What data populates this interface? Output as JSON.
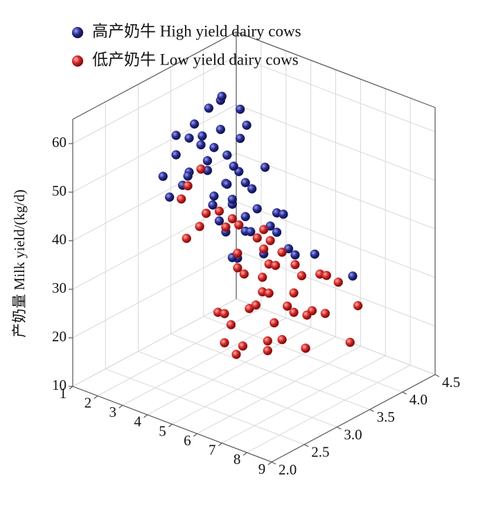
{
  "chart_data": {
    "type": "scatter3d",
    "zlabel": "产奶量  Milk yield/(kg/d)",
    "xlim": [
      1,
      9
    ],
    "xticks": [
      1,
      2,
      3,
      4,
      5,
      6,
      7,
      8,
      9
    ],
    "ylim": [
      2,
      4.5
    ],
    "yticks": [
      {
        "value": 2,
        "label": "2.0"
      },
      2.5,
      {
        "value": 3,
        "label": "3.0"
      },
      3.5,
      {
        "value": 4,
        "label": "4.0"
      },
      4.5
    ],
    "zlim": [
      10,
      65
    ],
    "zticks": [
      10,
      20,
      30,
      40,
      50,
      60
    ],
    "grid": true,
    "series": [
      {
        "name": "高产奶牛  High yield dairy cows",
        "color": "#2b2f8f",
        "x": [
          2,
          3,
          2,
          4,
          3,
          5,
          2,
          3,
          4,
          3,
          2,
          4,
          5,
          3,
          4,
          2,
          3,
          5,
          4,
          3,
          6,
          2,
          3,
          4,
          5,
          3,
          4,
          2,
          5,
          3,
          4,
          6,
          3,
          2,
          4,
          5,
          3,
          4,
          2,
          3,
          5,
          4,
          6,
          3,
          4,
          5,
          2,
          3,
          4,
          7
        ],
        "y": [
          3.2,
          3.5,
          3.0,
          3.4,
          3.8,
          3.3,
          3.6,
          3.1,
          3.5,
          3.9,
          3.3,
          3.2,
          3.6,
          3.4,
          3.0,
          3.7,
          3.3,
          3.5,
          3.8,
          3.2,
          3.4,
          3.1,
          3.6,
          3.3,
          3.7,
          3.5,
          3.2,
          3.4,
          3.0,
          3.8,
          3.6,
          3.5,
          3.3,
          3.9,
          3.1,
          3.4,
          3.7,
          3.5,
          3.2,
          3.4,
          3.6,
          3.3,
          3.8,
          3.0,
          3.5,
          3.2,
          3.4,
          3.6,
          3.3,
          4.0
        ],
        "z": [
          55,
          62,
          48,
          50,
          58,
          45,
          52,
          60,
          47,
          54,
          44,
          49,
          42,
          53,
          46,
          57,
          51,
          40,
          48,
          55,
          38,
          43,
          50,
          44,
          41,
          56,
          39,
          46,
          37,
          52,
          45,
          36,
          49,
          58,
          42,
          35,
          47,
          40,
          51,
          43,
          38,
          45,
          34,
          50,
          37,
          41,
          53,
          44,
          33,
          30
        ]
      },
      {
        "name": "低产奶牛  Low yield dairy cows",
        "color": "#d42a2a",
        "x": [
          5,
          6,
          4,
          7,
          5,
          6,
          8,
          5,
          4,
          6,
          7,
          5,
          8,
          6,
          4,
          7,
          5,
          6,
          3,
          7,
          8,
          5,
          6,
          4,
          7,
          5,
          6,
          8,
          4,
          6,
          7,
          5,
          3,
          6,
          8,
          7,
          5,
          4,
          6,
          9,
          5,
          7,
          6,
          4,
          8,
          6,
          5,
          7,
          3,
          6
        ],
        "y": [
          3.0,
          2.8,
          3.2,
          3.1,
          2.7,
          3.3,
          2.9,
          3.4,
          2.6,
          3.0,
          3.5,
          2.8,
          3.2,
          3.1,
          2.9,
          2.7,
          3.3,
          3.6,
          3.0,
          2.8,
          3.4,
          3.1,
          2.6,
          3.3,
          3.0,
          2.9,
          3.2,
          3.7,
          2.8,
          3.5,
          3.1,
          3.0,
          3.2,
          2.7,
          3.0,
          3.3,
          3.4,
          3.1,
          2.9,
          3.2,
          2.8,
          3.6,
          3.0,
          3.4,
          2.9,
          3.1,
          3.5,
          2.7,
          2.9,
          3.3
        ],
        "z": [
          35,
          30,
          40,
          33,
          28,
          38,
          25,
          36,
          42,
          32,
          34,
          27,
          30,
          37,
          45,
          26,
          39,
          31,
          48,
          29,
          35,
          33,
          22,
          41,
          31,
          24,
          36,
          28,
          43,
          34,
          29,
          38,
          50,
          23,
          32,
          27,
          40,
          44,
          30,
          26,
          21,
          33,
          35,
          39,
          25,
          31,
          37,
          24,
          46,
          20
        ]
      }
    ]
  }
}
